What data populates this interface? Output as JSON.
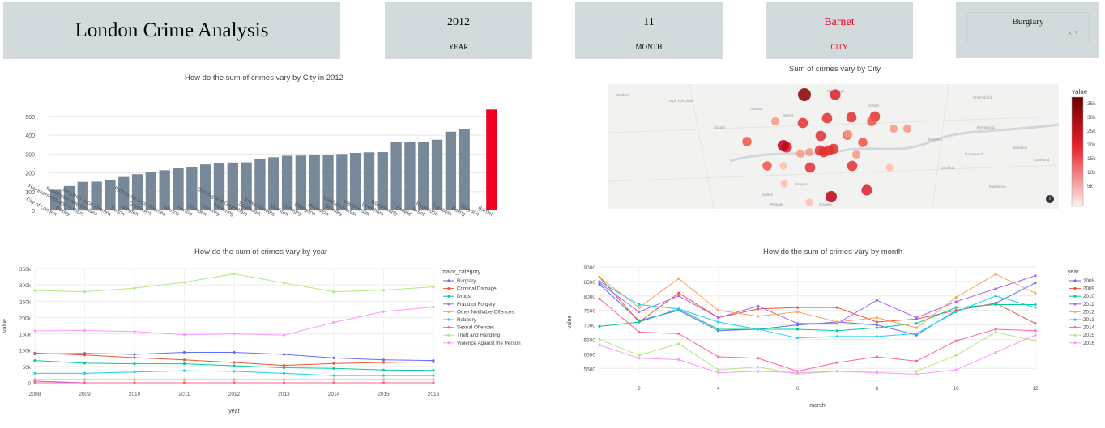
{
  "header": {
    "title": "London Crime Analysis"
  },
  "stats": [
    {
      "value": "2012",
      "label": "YEAR"
    },
    {
      "value": "11",
      "label": "MONTH"
    },
    {
      "value": "Barnet",
      "label": "CITY"
    }
  ],
  "dropdown": {
    "value": "Burglary",
    "clear": "×",
    "arrow": "▾"
  },
  "colors": {
    "bar": "#778899",
    "highlight": "#f00020",
    "card": "#d3dade"
  },
  "bar_chart": {
    "title": "How do the sum of crimes vary by City in 2012",
    "chart_data": {
      "type": "bar",
      "categories": [
        "City of London",
        "Bexley",
        "Hammersmith and Fulham",
        "Kensington and Chelsea",
        "Kingston upon Thames",
        "Sutton",
        "Islington",
        "Greenwich",
        "Richmond upon Thames",
        "Merton",
        "Harrow",
        "Camden",
        "Hackney",
        "Havering",
        "Barking and Dagenham",
        "Southwark",
        "Tower Hamlets",
        "Newham",
        "Haringey",
        "Hillingdon",
        "Hounslow",
        "Bromley",
        "Waltham Forest",
        "Westminster",
        "Lewisham",
        "Wandsworth",
        "Enfield",
        "Brent",
        "Redbridge",
        "Lambeth",
        "Ealing",
        "Croydon",
        "Barnet"
      ],
      "values": [
        110,
        130,
        152,
        153,
        164,
        178,
        193,
        205,
        214,
        224,
        232,
        245,
        254,
        255,
        256,
        276,
        283,
        291,
        292,
        293,
        294,
        300,
        306,
        309,
        310,
        365,
        366,
        366,
        376,
        419,
        434,
        0,
        537
      ],
      "highlight": "Barnet",
      "yticks": [
        0,
        100,
        200,
        300,
        400,
        500
      ],
      "ylim": [
        0,
        560
      ]
    }
  },
  "map": {
    "title": "Sum of crimes vary by City",
    "legend_title": "value",
    "legend_ticks": [
      "35k",
      "30k",
      "25k",
      "20k",
      "15k",
      "10k",
      "5k"
    ],
    "places": [
      "Watford",
      "High Wycombe",
      "Harrow",
      "Stevenage",
      "Barnet",
      "Enfield",
      "Chelmsford",
      "Romford",
      "Slough",
      "Croydon",
      "Sutton",
      "Gravesend",
      "Maidstone",
      "Crawley",
      "Reigate",
      "Dartford",
      "Brentwood",
      "Basildon",
      "Southend"
    ],
    "bubbles": [
      {
        "value": 34000,
        "shade": "#8b0000"
      },
      {
        "value": 26000,
        "shade": "#c0001a"
      },
      {
        "value": 22000,
        "shade": "#d8202a"
      },
      {
        "value": 20000,
        "shade": "#e03030"
      },
      {
        "value": 15000,
        "shade": "#f05545"
      },
      {
        "value": 9000,
        "shade": "#f89a80"
      },
      {
        "value": 5000,
        "shade": "#fcc0aa"
      }
    ]
  },
  "year_chart": {
    "title": "How do the sum of crimes vary by year",
    "chart_data": {
      "type": "line",
      "x": [
        2008,
        2009,
        2010,
        2011,
        2012,
        2013,
        2014,
        2015,
        2016
      ],
      "xlabel": "year",
      "ylabel": "value",
      "ylim": [
        0,
        350000
      ],
      "yticks": [
        0,
        50000,
        100000,
        150000,
        200000,
        250000,
        300000,
        350000
      ],
      "ytick_labels": [
        "0",
        "50k",
        "100k",
        "150k",
        "200k",
        "250k",
        "300k",
        "350k"
      ],
      "legend_title": "major_category",
      "series": [
        {
          "name": "Burglary",
          "color": "#636efa",
          "values": [
            88000,
            90000,
            87000,
            93000,
            93000,
            87000,
            76000,
            70000,
            68000
          ]
        },
        {
          "name": "Criminal Damage",
          "color": "#ef553b",
          "values": [
            91000,
            85000,
            77000,
            70000,
            62000,
            53000,
            59000,
            62000,
            64000
          ]
        },
        {
          "name": "Drugs",
          "color": "#00cc96",
          "values": [
            68000,
            60000,
            58000,
            58000,
            52000,
            46000,
            44000,
            39000,
            38000
          ]
        },
        {
          "name": "Fraud or Forgery",
          "color": "#ab63fa",
          "values": [
            5000,
            0,
            0,
            0,
            0,
            0,
            0,
            0,
            0
          ]
        },
        {
          "name": "Other Notifiable Offences",
          "color": "#ffa15a",
          "values": [
            10000,
            10000,
            10000,
            10000,
            10000,
            10000,
            10000,
            10000,
            10000
          ]
        },
        {
          "name": "Robbery",
          "color": "#19d3f3",
          "values": [
            29000,
            29000,
            33000,
            37000,
            35000,
            29000,
            22000,
            22000,
            22000
          ]
        },
        {
          "name": "Sexual Offences",
          "color": "#ff6692",
          "values": [
            0,
            0,
            0,
            0,
            0,
            0,
            0,
            0,
            0
          ]
        },
        {
          "name": "Theft and Handling",
          "color": "#b6e880",
          "values": [
            283000,
            279000,
            290000,
            308000,
            334000,
            306000,
            279000,
            284000,
            294000
          ]
        },
        {
          "name": "Violence Against the Person",
          "color": "#ff97ff",
          "values": [
            159000,
            160000,
            157000,
            147000,
            150000,
            146000,
            185000,
            218000,
            232000
          ]
        }
      ]
    }
  },
  "month_chart": {
    "title": "How do the sum of crimes vary by month",
    "chart_data": {
      "type": "line",
      "x": [
        1,
        2,
        3,
        4,
        5,
        6,
        7,
        8,
        9,
        10,
        11,
        12
      ],
      "xticks": [
        2,
        4,
        6,
        8,
        10,
        12
      ],
      "xlabel": "month",
      "ylabel": "value",
      "ylim": [
        5200,
        9000
      ],
      "yticks": [
        5500,
        6000,
        6500,
        7000,
        7500,
        8000,
        8500,
        9000
      ],
      "legend_title": "year",
      "series": [
        {
          "name": "2008",
          "color": "#636efa",
          "values": [
            8400,
            7150,
            7500,
            6800,
            6850,
            7000,
            7100,
            7000,
            6650,
            7500,
            7750,
            8450
          ]
        },
        {
          "name": "2009",
          "color": "#ef553b",
          "values": [
            8650,
            7100,
            8100,
            7250,
            7550,
            7600,
            7600,
            7100,
            7200,
            7500,
            7750,
            7050
          ]
        },
        {
          "name": "2010",
          "color": "#00cc96",
          "values": [
            6950,
            7100,
            7550,
            6850,
            6850,
            6850,
            6800,
            6900,
            7050,
            7600,
            7700,
            7700
          ]
        },
        {
          "name": "2011",
          "color": "#ab63fa",
          "values": [
            8450,
            7450,
            8000,
            7250,
            7650,
            7050,
            7050,
            7850,
            7250,
            7800,
            8250,
            8700
          ]
        },
        {
          "name": "2012",
          "color": "#ffa15a",
          "values": [
            8650,
            7600,
            8600,
            7500,
            7300,
            7450,
            7100,
            7250,
            6900,
            7950,
            8750,
            8100
          ]
        },
        {
          "name": "2013",
          "color": "#19d3f3",
          "values": [
            8500,
            7700,
            7550,
            7100,
            6850,
            6550,
            6600,
            6600,
            6700,
            7450,
            8000,
            7600
          ]
        },
        {
          "name": "2014",
          "color": "#ff6692",
          "values": [
            7900,
            6750,
            6700,
            5900,
            5850,
            5400,
            5700,
            5900,
            5750,
            6450,
            6850,
            6800
          ]
        },
        {
          "name": "2015",
          "color": "#b6e880",
          "values": [
            6500,
            5950,
            6350,
            5450,
            5550,
            5300,
            5400,
            5400,
            5400,
            5950,
            6750,
            6450
          ]
        },
        {
          "name": "2016",
          "color": "#ff97ff",
          "values": [
            6300,
            5850,
            5800,
            5350,
            5400,
            5350,
            5400,
            5350,
            5300,
            5450,
            6050,
            6650
          ]
        }
      ]
    }
  }
}
